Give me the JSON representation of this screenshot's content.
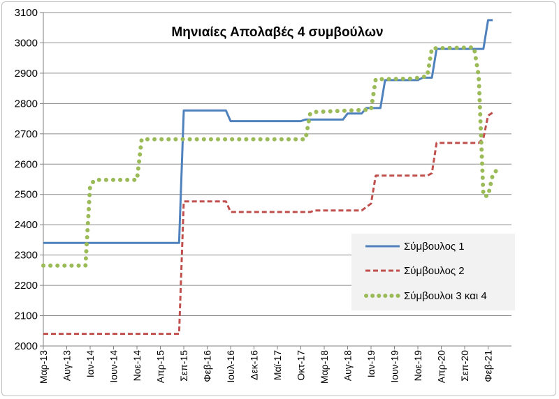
{
  "chart_data": {
    "type": "line",
    "title": "Μηνιαίες Απολαβές 4 συμβούλων",
    "xlabel": "",
    "ylabel": "",
    "ylim": [
      2000,
      3100
    ],
    "yticks": [
      2000,
      2100,
      2200,
      2300,
      2400,
      2500,
      2600,
      2700,
      2800,
      2900,
      3000,
      3100
    ],
    "x_ticklabels": [
      "Μαρ-13",
      "Αυγ-13",
      "Ιαν-14",
      "Ιουν-14",
      "Νοε-14",
      "Απρ-15",
      "Σεπ-15",
      "Φεβ-16",
      "Ιουλ-16",
      "Δεκ-16",
      "Μαϊ-17",
      "Οκτ-17",
      "Μαρ-18",
      "Αυγ-18",
      "Ιαν-19",
      "Ιουν-19",
      "Νοε-19",
      "Απρ-20",
      "Σεπ-20",
      "Φεβ-21"
    ],
    "x_tick_months": [
      0,
      5,
      10,
      15,
      20,
      25,
      30,
      35,
      40,
      45,
      50,
      55,
      60,
      65,
      70,
      75,
      80,
      85,
      90,
      95
    ],
    "x_month_range": [
      0,
      100
    ],
    "grid": true,
    "legend_position": "right",
    "series": [
      {
        "name": "Σύμβουλος 1",
        "color": "#4f81bd",
        "style": "solid",
        "points": [
          [
            0,
            2340
          ],
          [
            29,
            2340
          ],
          [
            30,
            2777
          ],
          [
            39,
            2777
          ],
          [
            40,
            2742
          ],
          [
            55,
            2742
          ],
          [
            56,
            2747
          ],
          [
            64,
            2747
          ],
          [
            65,
            2767
          ],
          [
            68,
            2767
          ],
          [
            69,
            2785
          ],
          [
            72,
            2785
          ],
          [
            73,
            2877
          ],
          [
            80,
            2877
          ],
          [
            81,
            2885
          ],
          [
            83,
            2885
          ],
          [
            84,
            2980
          ],
          [
            94,
            2980
          ],
          [
            95,
            3075
          ],
          [
            96,
            3075
          ]
        ]
      },
      {
        "name": "Σύμβουλος 2",
        "color": "#c0504d",
        "style": "dashed",
        "points": [
          [
            0,
            2040
          ],
          [
            29,
            2040
          ],
          [
            30,
            2477
          ],
          [
            39,
            2477
          ],
          [
            40,
            2442
          ],
          [
            57,
            2442
          ],
          [
            58,
            2447
          ],
          [
            68,
            2447
          ],
          [
            70,
            2470
          ],
          [
            71,
            2562
          ],
          [
            82,
            2562
          ],
          [
            83,
            2570
          ],
          [
            84,
            2670
          ],
          [
            93,
            2670
          ],
          [
            94,
            2685
          ],
          [
            95,
            2760
          ],
          [
            96,
            2770
          ]
        ]
      },
      {
        "name": "Σύμβουλοι 3 και 4",
        "color": "#9bbb59",
        "style": "dotted",
        "points": [
          [
            0,
            2265
          ],
          [
            9,
            2265
          ],
          [
            10,
            2530
          ],
          [
            11,
            2548
          ],
          [
            20,
            2548
          ],
          [
            21,
            2682
          ],
          [
            56,
            2682
          ],
          [
            57,
            2767
          ],
          [
            58,
            2772
          ],
          [
            70,
            2780
          ],
          [
            71,
            2880
          ],
          [
            79,
            2882
          ],
          [
            82,
            2890
          ],
          [
            83,
            2982
          ],
          [
            92,
            2985
          ],
          [
            93,
            2890
          ],
          [
            94,
            2495
          ],
          [
            95,
            2495
          ],
          [
            96,
            2565
          ],
          [
            97,
            2583
          ]
        ]
      }
    ]
  }
}
